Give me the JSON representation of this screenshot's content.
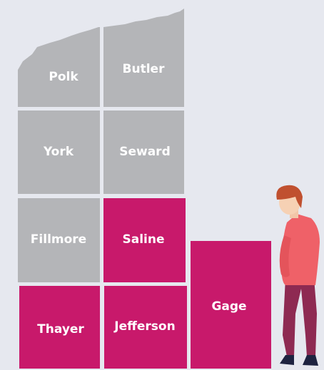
{
  "map": {
    "regions": [
      {
        "name": "Polk",
        "color": "#b4b5b8"
      },
      {
        "name": "Butler",
        "color": "#b4b5b8"
      },
      {
        "name": "York",
        "color": "#b4b5b8"
      },
      {
        "name": "Seward",
        "color": "#b4b5b8"
      },
      {
        "name": "Fillmore",
        "color": "#b4b5b8"
      },
      {
        "name": "Saline",
        "color": "#c8196b"
      },
      {
        "name": "Thayer",
        "color": "#c8196b"
      },
      {
        "name": "Jefferson",
        "color": "#c8196b"
      },
      {
        "name": "Gage",
        "color": "#c8196b"
      }
    ]
  }
}
